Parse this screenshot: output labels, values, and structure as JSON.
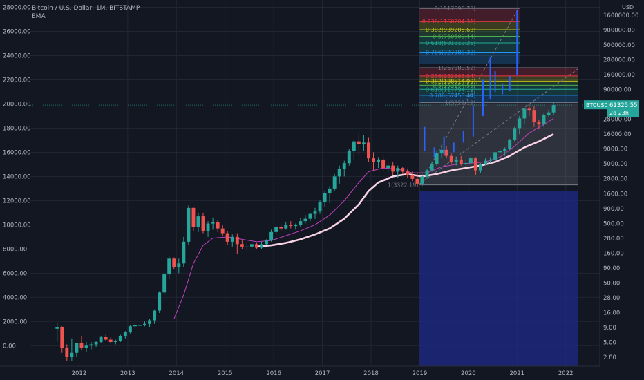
{
  "header": {
    "symbol_title": "Bitcoin / U.S. Dollar, 1M, BITSTAMP",
    "indicator": "EMA"
  },
  "chart_data": {
    "type": "candlestick",
    "left_axis": {
      "ticks": [
        "28000.00",
        "26000.00",
        "24000.00",
        "22000.00",
        "20000.00",
        "18000.00",
        "16000.00",
        "14000.00",
        "12000.00",
        "10000.00",
        "8000.00",
        "6000.00",
        "4000.00",
        "2000.00",
        "0.00"
      ],
      "ylim": [
        -1700,
        28600
      ]
    },
    "right_axis": {
      "unit": "USD",
      "scale": "log",
      "ticks": [
        "1600000.00",
        "900000.00",
        "500000.00",
        "280000.00",
        "160000.00",
        "90000.00",
        "50000.00",
        "28000.00",
        "16000.00",
        "9000.00",
        "5000.00",
        "2800.00",
        "1600.00",
        "900.00",
        "500.00",
        "280.00",
        "160.00",
        "90.00",
        "50.00",
        "28.00",
        "16.00",
        "9.00",
        "5.00",
        "2.80"
      ]
    },
    "x_axis": {
      "ticks": [
        "2012",
        "2013",
        "2014",
        "2015",
        "2016",
        "2017",
        "2018",
        "2019",
        "2020",
        "2021",
        "2022"
      ],
      "range": [
        2011.0,
        2022.7
      ]
    },
    "price_label": {
      "symbol": "BTCUSD",
      "price": "61325.55",
      "countdown": "2d 23h"
    },
    "fib_levels": [
      {
        "label": "0(1517696.70)",
        "color": "#787b86"
      },
      {
        "label": "0.236(1160204.31)",
        "color": "#f23645"
      },
      {
        "label": "0.382(939205.63)",
        "color": "#c4c41a"
      },
      {
        "label": "0.5(760509.44)",
        "color": "#4caf50"
      },
      {
        "label": "0.618(581813.25)",
        "color": "#22ab94"
      },
      {
        "label": "0.786(327388.32)",
        "color": "#2196f3"
      },
      {
        "label": "1(267980.52)",
        "color": "#787b86"
      },
      {
        "label": "0.236(232266.04)",
        "color": "#f23645"
      },
      {
        "label": "0.382(188514.99)",
        "color": "#c4c41a"
      },
      {
        "label": "0.5(153154.55)",
        "color": "#4caf50"
      },
      {
        "label": "0.618(117794.12)",
        "color": "#22ab94"
      },
      {
        "label": "0.786(67450.44)",
        "color": "#2196f3"
      },
      {
        "label": "1(3322.19)",
        "color": "#787b86"
      }
    ],
    "candles": [
      [
        2011.55,
        1400,
        1900,
        300,
        1500
      ],
      [
        2011.65,
        1500,
        1600,
        -600,
        -200
      ],
      [
        2011.75,
        -200,
        100,
        -1300,
        -900
      ],
      [
        2011.85,
        -900,
        600,
        -1300,
        -600
      ],
      [
        2011.95,
        -600,
        200,
        -900,
        200
      ],
      [
        2012.05,
        200,
        800,
        -400,
        -200
      ],
      [
        2012.15,
        -200,
        300,
        -500,
        0
      ],
      [
        2012.25,
        0,
        300,
        -300,
        100
      ],
      [
        2012.35,
        100,
        400,
        -100,
        300
      ],
      [
        2012.45,
        300,
        800,
        200,
        700
      ],
      [
        2012.55,
        700,
        900,
        400,
        500
      ],
      [
        2012.65,
        500,
        700,
        200,
        300
      ],
      [
        2012.75,
        300,
        500,
        100,
        400
      ],
      [
        2012.85,
        400,
        900,
        300,
        800
      ],
      [
        2012.95,
        800,
        1200,
        600,
        1100
      ],
      [
        2013.05,
        1100,
        1700,
        1000,
        1600
      ],
      [
        2013.15,
        1600,
        1800,
        1400,
        1700
      ],
      [
        2013.25,
        1700,
        1900,
        1500,
        1700
      ],
      [
        2013.35,
        1700,
        2000,
        1600,
        1800
      ],
      [
        2013.45,
        1800,
        2200,
        1500,
        2100
      ],
      [
        2013.55,
        2100,
        3000,
        1800,
        2900
      ],
      [
        2013.65,
        2900,
        4500,
        2700,
        4400
      ],
      [
        2013.75,
        4400,
        6000,
        4200,
        5900
      ],
      [
        2013.85,
        5900,
        7400,
        5500,
        7200
      ],
      [
        2013.95,
        7200,
        7300,
        6300,
        6500
      ],
      [
        2014.05,
        6500,
        7200,
        6000,
        6800
      ],
      [
        2014.15,
        6800,
        9000,
        6500,
        8600
      ],
      [
        2014.25,
        8600,
        11600,
        8300,
        11400
      ],
      [
        2014.35,
        11400,
        11500,
        9500,
        9800
      ],
      [
        2014.45,
        9800,
        11000,
        9400,
        10700
      ],
      [
        2014.55,
        10700,
        11000,
        9300,
        9500
      ],
      [
        2014.65,
        9500,
        10300,
        9000,
        10100
      ],
      [
        2014.75,
        10100,
        10600,
        9600,
        10200
      ],
      [
        2014.85,
        10200,
        10400,
        9400,
        9700
      ],
      [
        2014.95,
        9700,
        10000,
        9100,
        9300
      ],
      [
        2015.05,
        9300,
        9500,
        8300,
        8600
      ],
      [
        2015.15,
        8600,
        9200,
        8200,
        9000
      ],
      [
        2015.25,
        9000,
        9300,
        7600,
        8400
      ],
      [
        2015.35,
        8400,
        8700,
        8000,
        8200
      ],
      [
        2015.45,
        8200,
        8500,
        7900,
        8200
      ],
      [
        2015.55,
        8200,
        8500,
        7900,
        8400
      ],
      [
        2015.65,
        8400,
        8500,
        8000,
        8100
      ],
      [
        2015.75,
        8100,
        8600,
        8000,
        8400
      ],
      [
        2015.85,
        8400,
        8800,
        8300,
        8700
      ],
      [
        2015.95,
        8700,
        9600,
        8600,
        9400
      ],
      [
        2016.05,
        9400,
        9900,
        9200,
        9800
      ],
      [
        2016.15,
        9800,
        10000,
        9500,
        9700
      ],
      [
        2016.25,
        9700,
        10200,
        9600,
        10000
      ],
      [
        2016.35,
        10000,
        10300,
        9700,
        9900
      ],
      [
        2016.45,
        9900,
        10100,
        9600,
        10000
      ],
      [
        2016.55,
        10000,
        10600,
        9800,
        10300
      ],
      [
        2016.65,
        10300,
        10800,
        10100,
        10500
      ],
      [
        2016.75,
        10500,
        11000,
        10300,
        10900
      ],
      [
        2016.85,
        10900,
        11400,
        10500,
        11100
      ],
      [
        2016.95,
        11100,
        12000,
        10900,
        11900
      ],
      [
        2017.05,
        11900,
        12800,
        11500,
        12600
      ],
      [
        2017.15,
        12600,
        13200,
        11800,
        13000
      ],
      [
        2017.25,
        13000,
        14200,
        12800,
        14000
      ],
      [
        2017.35,
        14000,
        14900,
        13400,
        14600
      ],
      [
        2017.45,
        14600,
        15300,
        14000,
        15100
      ],
      [
        2017.55,
        15100,
        16300,
        14900,
        16100
      ],
      [
        2017.65,
        16100,
        17000,
        15400,
        16900
      ],
      [
        2017.75,
        16900,
        17600,
        15800,
        16700
      ],
      [
        2017.85,
        16700,
        17400,
        16100,
        16800
      ],
      [
        2017.95,
        16800,
        17200,
        15200,
        15500
      ],
      [
        2018.05,
        15500,
        16000,
        14500,
        15200
      ],
      [
        2018.15,
        15200,
        15600,
        14700,
        15400
      ],
      [
        2018.25,
        15400,
        15700,
        14400,
        14700
      ],
      [
        2018.35,
        14700,
        15100,
        14300,
        14900
      ],
      [
        2018.45,
        14900,
        15200,
        14100,
        14400
      ],
      [
        2018.55,
        14400,
        14900,
        13900,
        14700
      ],
      [
        2018.65,
        14700,
        14800,
        14200,
        14400
      ],
      [
        2018.75,
        14400,
        14600,
        13900,
        14100
      ],
      [
        2018.85,
        14100,
        14400,
        13600,
        13800
      ],
      [
        2018.95,
        13800,
        14300,
        13100,
        13400
      ],
      [
        2019.05,
        13400,
        14200,
        13200,
        14000
      ],
      [
        2019.15,
        14000,
        14600,
        13800,
        14500
      ],
      [
        2019.25,
        14500,
        15200,
        14400,
        15000
      ],
      [
        2019.35,
        15000,
        16100,
        14900,
        15900
      ],
      [
        2019.45,
        15900,
        16600,
        15500,
        16200
      ],
      [
        2019.55,
        16200,
        16500,
        15500,
        15700
      ],
      [
        2019.65,
        15700,
        15900,
        15000,
        15200
      ],
      [
        2019.75,
        15200,
        15600,
        14900,
        15400
      ],
      [
        2019.85,
        15400,
        15700,
        14900,
        15000
      ],
      [
        2019.95,
        15000,
        15300,
        14800,
        15100
      ],
      [
        2020.05,
        15100,
        15700,
        14900,
        15500
      ],
      [
        2020.15,
        15500,
        15600,
        14100,
        14500
      ],
      [
        2020.25,
        14500,
        15100,
        14300,
        15000
      ],
      [
        2020.35,
        15000,
        15500,
        14900,
        15300
      ],
      [
        2020.45,
        15300,
        15600,
        15100,
        15400
      ],
      [
        2020.55,
        15400,
        16100,
        15300,
        16000
      ],
      [
        2020.65,
        16000,
        16300,
        15800,
        16100
      ],
      [
        2020.75,
        16100,
        16400,
        15700,
        16300
      ],
      [
        2020.85,
        16300,
        17100,
        16200,
        17000
      ],
      [
        2020.95,
        17000,
        18100,
        16900,
        18000
      ],
      [
        2021.05,
        18000,
        19000,
        17500,
        18800
      ],
      [
        2021.15,
        18800,
        19700,
        18300,
        19600
      ],
      [
        2021.25,
        19600,
        20000,
        19000,
        19500
      ],
      [
        2021.35,
        19500,
        19800,
        18100,
        18500
      ],
      [
        2021.45,
        18500,
        18700,
        17900,
        18300
      ],
      [
        2021.55,
        18300,
        19200,
        18100,
        19100
      ],
      [
        2021.65,
        19100,
        19500,
        18900,
        19300
      ],
      [
        2021.75,
        19300,
        20100,
        19100,
        19900
      ]
    ],
    "ema_fast": [
      [
        2013.95,
        2200
      ],
      [
        2014.15,
        4200
      ],
      [
        2014.35,
        6800
      ],
      [
        2014.55,
        8300
      ],
      [
        2014.75,
        8900
      ],
      [
        2015.05,
        9000
      ],
      [
        2015.35,
        8800
      ],
      [
        2015.65,
        8600
      ],
      [
        2015.95,
        8700
      ],
      [
        2016.25,
        9100
      ],
      [
        2016.55,
        9500
      ],
      [
        2016.85,
        10000
      ],
      [
        2017.15,
        10800
      ],
      [
        2017.45,
        12000
      ],
      [
        2017.75,
        13500
      ],
      [
        2017.95,
        14400
      ],
      [
        2018.25,
        14700
      ],
      [
        2018.55,
        14600
      ],
      [
        2018.85,
        14300
      ],
      [
        2019.15,
        14300
      ],
      [
        2019.45,
        14800
      ],
      [
        2019.75,
        15000
      ],
      [
        2020.05,
        15100
      ],
      [
        2020.35,
        15200
      ],
      [
        2020.65,
        15600
      ],
      [
        2020.95,
        16500
      ],
      [
        2021.25,
        17600
      ],
      [
        2021.55,
        18300
      ],
      [
        2021.75,
        18800
      ]
    ],
    "ema_slow": [
      [
        2015.65,
        8200
      ],
      [
        2015.95,
        8300
      ],
      [
        2016.25,
        8500
      ],
      [
        2016.55,
        8800
      ],
      [
        2016.85,
        9200
      ],
      [
        2017.15,
        9700
      ],
      [
        2017.45,
        10500
      ],
      [
        2017.75,
        11700
      ],
      [
        2017.95,
        12800
      ],
      [
        2018.15,
        13500
      ],
      [
        2018.45,
        14000
      ],
      [
        2018.75,
        14200
      ],
      [
        2019.05,
        14000
      ],
      [
        2019.35,
        14200
      ],
      [
        2019.65,
        14500
      ],
      [
        2019.95,
        14700
      ],
      [
        2020.25,
        14900
      ],
      [
        2020.55,
        15200
      ],
      [
        2020.85,
        15700
      ],
      [
        2021.15,
        16400
      ],
      [
        2021.45,
        16900
      ],
      [
        2021.75,
        17500
      ]
    ]
  }
}
